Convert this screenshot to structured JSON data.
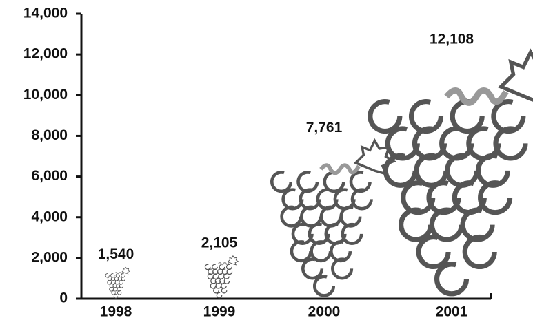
{
  "chart_data": {
    "type": "pictograph",
    "categories": [
      "1998",
      "1999",
      "2000",
      "2001"
    ],
    "values": [
      1540,
      2105,
      7761,
      12108
    ],
    "value_labels": [
      "1,540",
      "2,105",
      "7,761",
      "12,108"
    ],
    "color": "#555555",
    "accent_color": "#999999",
    "ylim": [
      0,
      14000
    ],
    "yticks": [
      0,
      {
        "value": 2000,
        "label": "2,000"
      },
      {
        "value": 4000,
        "label": "4,000"
      },
      {
        "value": 6000,
        "label": "6,000"
      },
      {
        "value": 8000,
        "label": "8,000"
      },
      {
        "value": 10000,
        "label": "10,000"
      },
      {
        "value": 12000,
        "label": "12,000"
      },
      {
        "value": 14000,
        "label": "14,000"
      }
    ]
  }
}
